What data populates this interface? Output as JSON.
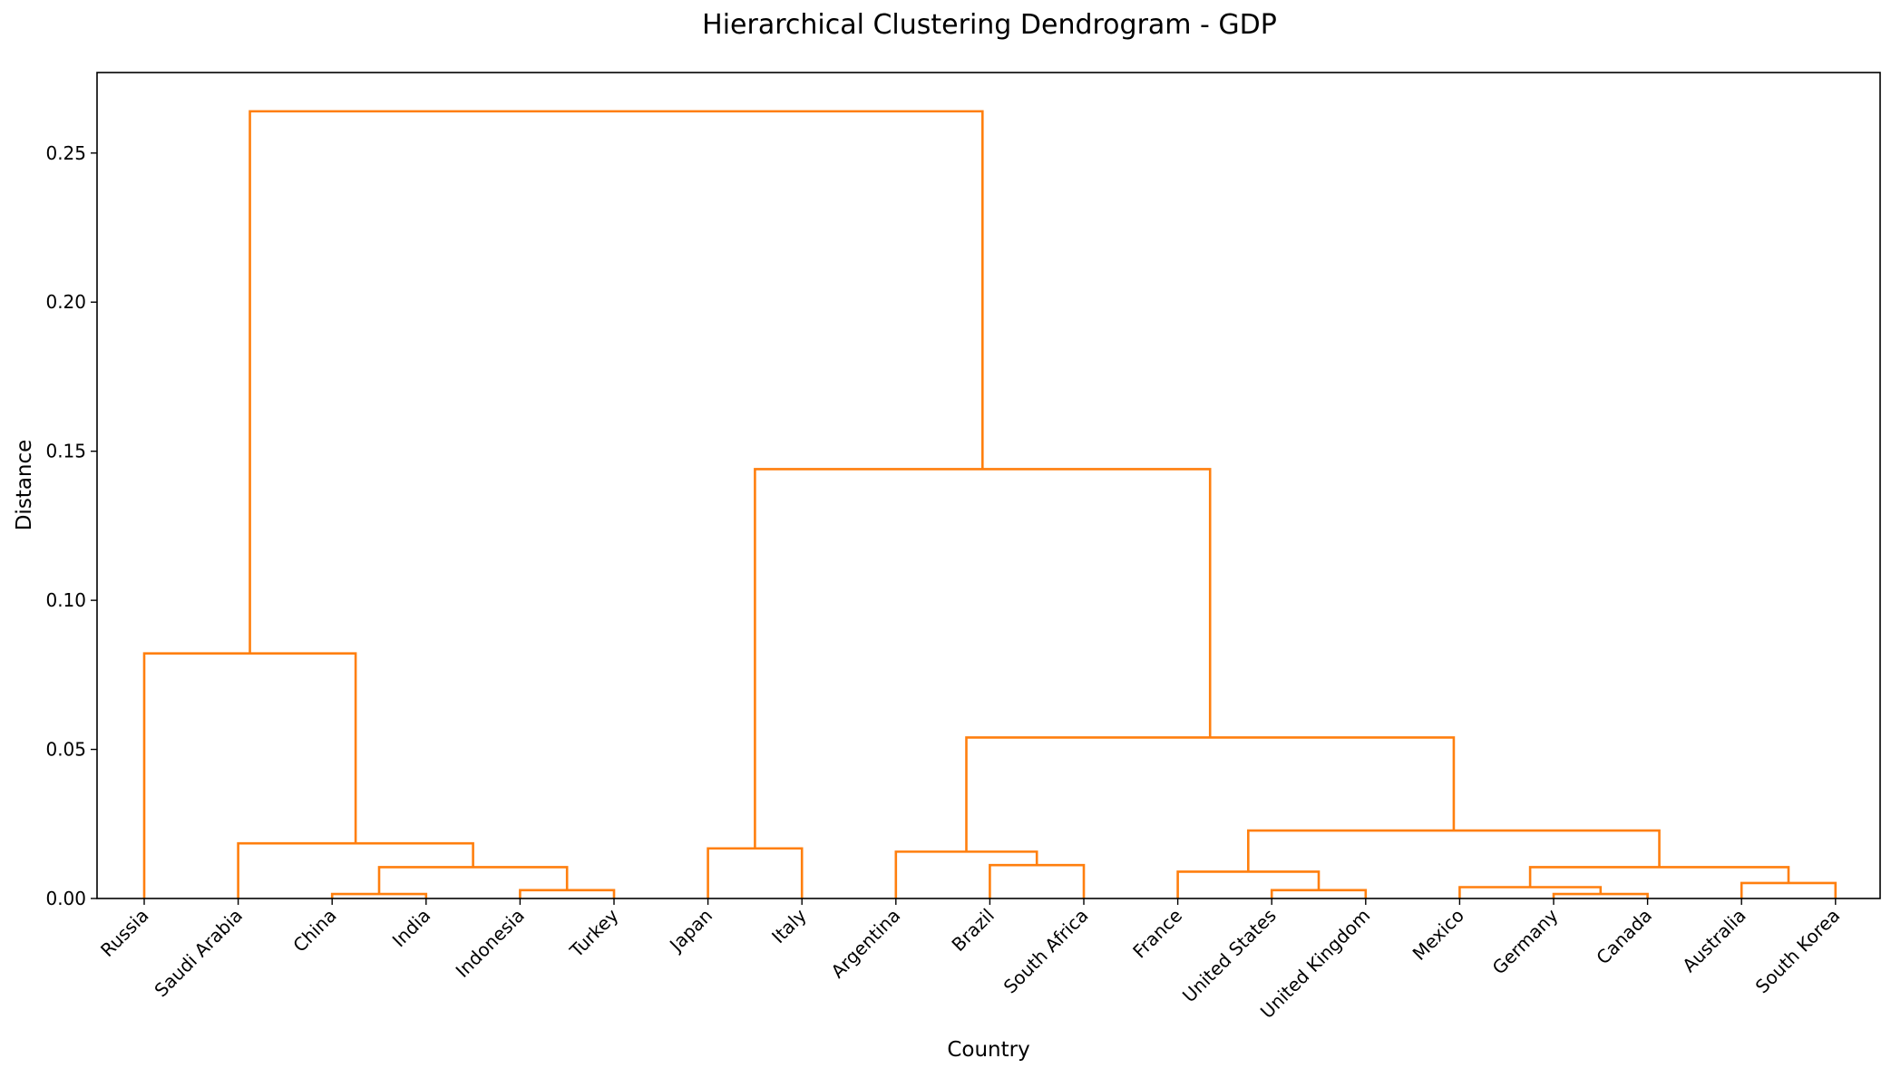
{
  "chart_data": {
    "type": "dendrogram",
    "title": "Hierarchical Clustering Dendrogram - GDP",
    "xlabel": "Country",
    "ylabel": "Distance",
    "ylim": [
      0,
      0.277
    ],
    "y_ticks": [
      "0.00",
      "0.05",
      "0.10",
      "0.15",
      "0.20",
      "0.25"
    ],
    "y_tick_values": [
      0,
      0.05,
      0.1,
      0.15,
      0.2,
      0.25
    ],
    "leaves": [
      "Russia",
      "Saudi Arabia",
      "China",
      "India",
      "Indonesia",
      "Turkey",
      "Japan",
      "Italy",
      "Argentina",
      "Brazil",
      "South Africa",
      "France",
      "United States",
      "United Kingdom",
      "Mexico",
      "Germany",
      "Canada",
      "Australia",
      "South Korea"
    ],
    "merges": [
      {
        "left": "China",
        "right": "India",
        "distance": 0.0015
      },
      {
        "left": "Indonesia",
        "right": "Turkey",
        "distance": 0.0028
      },
      {
        "left": "China+India",
        "right": "Indonesia+Turkey",
        "distance": 0.0105
      },
      {
        "left": "Saudi Arabia",
        "right": "China+India+Indonesia+Turkey",
        "distance": 0.0185
      },
      {
        "left": "Russia",
        "right": "Saudi Arabia+China+India+Indonesia+Turkey",
        "distance": 0.0822
      },
      {
        "left": "Japan",
        "right": "Italy",
        "distance": 0.0168
      },
      {
        "left": "Brazil",
        "right": "South Africa",
        "distance": 0.0112
      },
      {
        "left": "Argentina",
        "right": "Brazil+South Africa",
        "distance": 0.0157
      },
      {
        "left": "United States",
        "right": "United Kingdom",
        "distance": 0.0028
      },
      {
        "left": "France",
        "right": "United States+United Kingdom",
        "distance": 0.009
      },
      {
        "left": "Germany",
        "right": "Canada",
        "distance": 0.0015
      },
      {
        "left": "Mexico",
        "right": "Germany+Canada",
        "distance": 0.0038
      },
      {
        "left": "Australia",
        "right": "South Korea",
        "distance": 0.0052
      },
      {
        "left": "Mexico+Germany+Canada",
        "right": "Australia+South Korea",
        "distance": 0.0105
      },
      {
        "left": "France+United States+United Kingdom",
        "right": "Mexico+Germany+Canada+Australia+South Korea",
        "distance": 0.0228
      },
      {
        "left": "Argentina+Brazil+South Africa",
        "right": "France+...+South Korea",
        "distance": 0.054
      },
      {
        "left": "Japan+Italy",
        "right": "Argentina+...+South Korea",
        "distance": 0.144
      },
      {
        "left": "Russia+...+Turkey",
        "right": "Japan+...+South Korea",
        "distance": 0.264
      }
    ],
    "link_color": "#ff7f0e",
    "grid": false
  }
}
